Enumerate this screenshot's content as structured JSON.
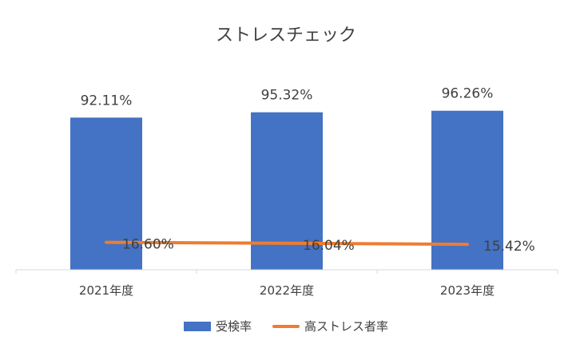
{
  "chart_data": {
    "type": "bar",
    "title": "ストレスチェック",
    "categories": [
      "2021年度",
      "2022年度",
      "2023年度"
    ],
    "series": [
      {
        "name": "受検率",
        "type": "bar",
        "values": [
          92.11,
          95.32,
          96.26
        ],
        "labels": [
          "92.11%",
          "95.32%",
          "96.26%"
        ],
        "color": "#4472C4"
      },
      {
        "name": "高ストレス者率",
        "type": "line",
        "values": [
          16.6,
          16.04,
          15.42
        ],
        "labels": [
          "16.60%",
          "16.04%",
          "15.42%"
        ],
        "color": "#ED7D31"
      }
    ],
    "ylim": [
      0,
      100
    ],
    "grid": false,
    "legend": "bottom"
  }
}
